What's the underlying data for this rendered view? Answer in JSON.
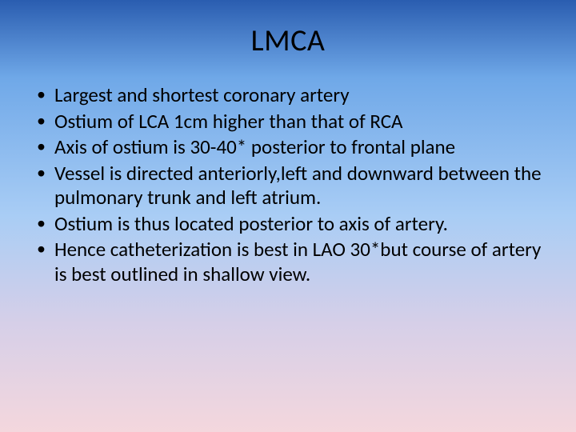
{
  "slide": {
    "title": "LMCA",
    "bullets": [
      "Largest and shortest coronary artery",
      "Ostium of LCA 1cm higher than that of RCA",
      "Axis of ostium is 30-40* posterior to frontal plane",
      "Vessel is directed anteriorly,left and downward between the pulmonary trunk and left atrium.",
      "Ostium is thus located posterior to axis of artery.",
      "Hence catheterization is best in LAO 30*but course of artery is best outlined in shallow view."
    ],
    "title_fontsize": 38,
    "bullet_fontsize": 25,
    "text_color": "#000000",
    "background_gradient": [
      "#2a5db0",
      "#6fa8e8",
      "#a9cdf5",
      "#d6cfe8",
      "#f4d7dd"
    ],
    "font_family": "Calibri"
  }
}
